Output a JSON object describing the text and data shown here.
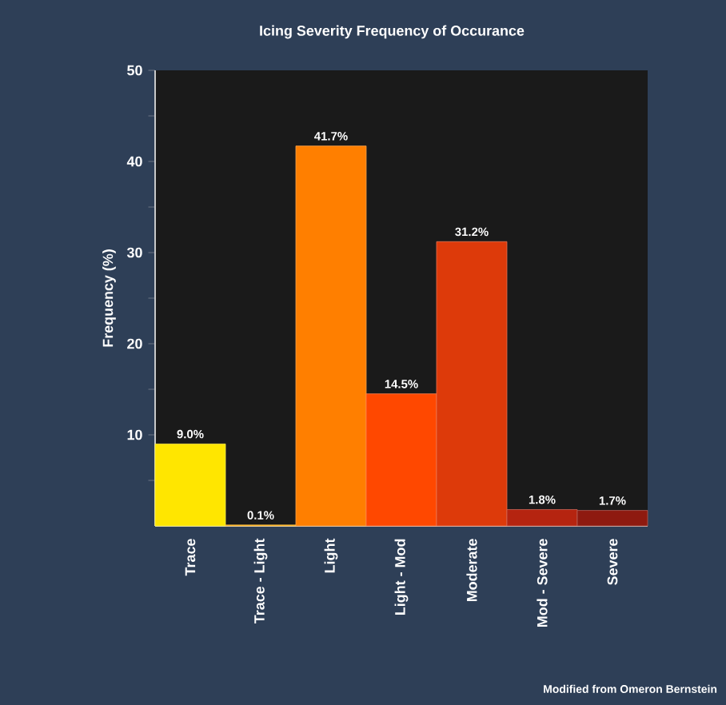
{
  "chart_data": {
    "type": "bar",
    "title": "Icing Severity Frequency of Occurance",
    "ylabel": "Frequency (%)",
    "categories": [
      "Trace",
      "Trace - Light",
      "Light",
      "Light - Mod",
      "Moderate",
      "Mod - Severe",
      "Severe"
    ],
    "values": [
      9.0,
      0.1,
      41.7,
      14.5,
      31.2,
      1.8,
      1.7
    ],
    "colors": [
      "#ffe600",
      "#ffaa00",
      "#ff7f00",
      "#ff4800",
      "#dd3a0a",
      "#b52410",
      "#8e1a10"
    ],
    "value_labels": [
      "9.0%",
      "0.1%",
      "41.7%",
      "14.5%",
      "31.2%",
      "1.8%",
      "1.7%"
    ],
    "ylim": [
      0,
      50
    ],
    "yticks": [
      {
        "value": 5,
        "label": null
      },
      10,
      {
        "value": 15,
        "label": null
      },
      20,
      {
        "value": 25,
        "label": null
      },
      30,
      {
        "value": 35,
        "label": null
      },
      40,
      {
        "value": 45,
        "label": null
      },
      50
    ],
    "annotations": [
      "Modified from Omeron Bernstein"
    ]
  }
}
